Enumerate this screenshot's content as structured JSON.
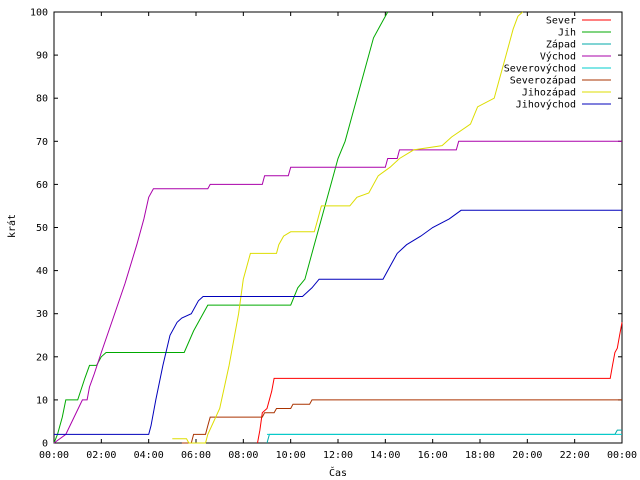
{
  "chart_data": {
    "type": "line",
    "xlabel": "Čas",
    "ylabel": "krát",
    "ylim": [
      0,
      100
    ],
    "yticks": [
      "0",
      "10",
      "20",
      "30",
      "40",
      "50",
      "60",
      "70",
      "80",
      "90",
      "100"
    ],
    "xlim": [
      0,
      24
    ],
    "xticks": [
      "00:00",
      "02:00",
      "04:00",
      "06:00",
      "08:00",
      "10:00",
      "12:00",
      "14:00",
      "16:00",
      "18:00",
      "20:00",
      "22:00",
      "00:00"
    ],
    "grid": false,
    "legend_position": "top-right",
    "series": [
      {
        "name": "Sever",
        "color": "#ff0000",
        "points": [
          [
            8.6,
            0
          ],
          [
            8.7,
            3
          ],
          [
            8.8,
            7
          ],
          [
            9.0,
            8
          ],
          [
            9.2,
            12
          ],
          [
            9.3,
            15
          ],
          [
            23.5,
            15
          ],
          [
            23.6,
            18
          ],
          [
            23.7,
            21
          ],
          [
            23.8,
            22
          ],
          [
            23.9,
            25
          ],
          [
            24.0,
            28
          ]
        ]
      },
      {
        "name": "Jih",
        "color": "#00aa00",
        "points": [
          [
            0,
            0
          ],
          [
            0.15,
            2
          ],
          [
            0.35,
            6
          ],
          [
            0.5,
            10
          ],
          [
            1.0,
            10
          ],
          [
            1.3,
            15
          ],
          [
            1.5,
            18
          ],
          [
            1.8,
            18
          ],
          [
            2.0,
            20
          ],
          [
            2.2,
            21
          ],
          [
            5.5,
            21
          ],
          [
            5.9,
            26
          ],
          [
            6.2,
            29
          ],
          [
            6.5,
            32
          ],
          [
            10.0,
            32
          ],
          [
            10.3,
            36
          ],
          [
            10.6,
            38
          ],
          [
            11.0,
            46
          ],
          [
            11.4,
            54
          ],
          [
            11.8,
            62
          ],
          [
            12.0,
            66
          ],
          [
            12.3,
            70
          ],
          [
            12.6,
            76
          ],
          [
            12.9,
            82
          ],
          [
            13.2,
            88
          ],
          [
            13.5,
            94
          ],
          [
            13.8,
            97
          ],
          [
            14.1,
            100
          ]
        ]
      },
      {
        "name": "Západ",
        "color": "#00aaaa",
        "points": [
          [
            9.0,
            0
          ],
          [
            9.1,
            2
          ],
          [
            23.7,
            2
          ],
          [
            23.8,
            3
          ],
          [
            24.0,
            3
          ]
        ]
      },
      {
        "name": "Východ",
        "color": "#aa00aa",
        "points": [
          [
            0,
            0
          ],
          [
            0.5,
            2
          ],
          [
            1.2,
            10
          ],
          [
            1.4,
            10
          ],
          [
            1.5,
            13
          ],
          [
            1.7,
            16
          ],
          [
            2.0,
            21
          ],
          [
            2.5,
            29
          ],
          [
            3.0,
            37
          ],
          [
            3.5,
            46
          ],
          [
            3.8,
            52
          ],
          [
            4.0,
            57
          ],
          [
            4.2,
            59
          ],
          [
            6.5,
            59
          ],
          [
            6.6,
            60
          ],
          [
            8.8,
            60
          ],
          [
            8.9,
            62
          ],
          [
            9.9,
            62
          ],
          [
            10.0,
            64
          ],
          [
            14.0,
            64
          ],
          [
            14.1,
            66
          ],
          [
            14.5,
            66
          ],
          [
            14.6,
            68
          ],
          [
            17.0,
            68
          ],
          [
            17.1,
            70
          ],
          [
            24.0,
            70
          ]
        ]
      },
      {
        "name": "Severovýchod",
        "color": "#00cccc",
        "points": [
          [
            9.0,
            2
          ],
          [
            24.0,
            2
          ]
        ]
      },
      {
        "name": "Severozápad",
        "color": "#aa3300",
        "points": [
          [
            5.4,
            0
          ],
          [
            5.8,
            0
          ],
          [
            5.9,
            2
          ],
          [
            6.4,
            2
          ],
          [
            6.5,
            4
          ],
          [
            6.6,
            6
          ],
          [
            8.8,
            6
          ],
          [
            8.9,
            7
          ],
          [
            9.3,
            7
          ],
          [
            9.4,
            8
          ],
          [
            10.0,
            8
          ],
          [
            10.1,
            9
          ],
          [
            10.8,
            9
          ],
          [
            10.9,
            10
          ],
          [
            24.0,
            10
          ]
        ]
      },
      {
        "name": "Jihozápad",
        "color": "#dddd00",
        "points": [
          [
            5.0,
            1
          ],
          [
            5.6,
            1
          ],
          [
            5.7,
            0
          ],
          [
            6.4,
            0
          ],
          [
            6.5,
            2
          ],
          [
            7.0,
            8
          ],
          [
            7.4,
            18
          ],
          [
            7.8,
            30
          ],
          [
            8.0,
            38
          ],
          [
            8.3,
            44
          ],
          [
            9.4,
            44
          ],
          [
            9.5,
            46
          ],
          [
            9.7,
            48
          ],
          [
            10.0,
            49
          ],
          [
            11.0,
            49
          ],
          [
            11.1,
            51
          ],
          [
            11.3,
            55
          ],
          [
            12.5,
            55
          ],
          [
            12.8,
            57
          ],
          [
            13.3,
            58
          ],
          [
            13.7,
            62
          ],
          [
            14.2,
            64
          ],
          [
            14.6,
            66
          ],
          [
            15.2,
            68
          ],
          [
            16.4,
            69
          ],
          [
            16.8,
            71
          ],
          [
            17.6,
            74
          ],
          [
            17.9,
            78
          ],
          [
            18.6,
            80
          ],
          [
            18.8,
            84
          ],
          [
            19.0,
            88
          ],
          [
            19.2,
            92
          ],
          [
            19.4,
            96
          ],
          [
            19.6,
            99
          ],
          [
            19.8,
            100
          ]
        ]
      },
      {
        "name": "Jihovýchod",
        "color": "#0000bb",
        "points": [
          [
            0,
            2
          ],
          [
            4.0,
            2
          ],
          [
            4.1,
            4
          ],
          [
            4.3,
            10
          ],
          [
            4.6,
            18
          ],
          [
            4.9,
            25
          ],
          [
            5.2,
            28
          ],
          [
            5.4,
            29
          ],
          [
            5.8,
            30
          ],
          [
            6.1,
            33
          ],
          [
            6.3,
            34
          ],
          [
            10.5,
            34
          ],
          [
            10.9,
            36
          ],
          [
            11.2,
            38
          ],
          [
            13.9,
            38
          ],
          [
            14.1,
            40
          ],
          [
            14.5,
            44
          ],
          [
            14.9,
            46
          ],
          [
            15.5,
            48
          ],
          [
            16.0,
            50
          ],
          [
            16.7,
            52
          ],
          [
            17.2,
            54
          ],
          [
            24.0,
            54
          ]
        ]
      }
    ]
  }
}
